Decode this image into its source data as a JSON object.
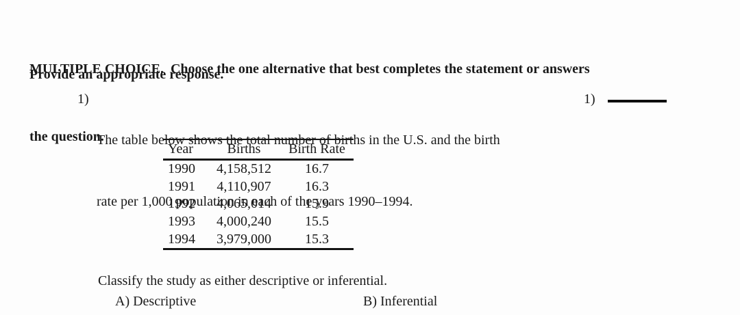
{
  "document": {
    "heading": {
      "line1": "MULTIPLE CHOICE.  Choose the one alternative that best completes the statement or answers",
      "line2": "the question."
    },
    "instruction": "Provide an appropriate response."
  },
  "question": {
    "number": "1)",
    "text_line1": "The table below shows the total number of births in the U.S. and the birth",
    "text_line2": "rate per 1,000 population in each of the years 1990–1994.",
    "answer_number": "1)",
    "prompt": "Classify the study as either descriptive or inferential.",
    "options": [
      {
        "label": "A) Descriptive"
      },
      {
        "label": "B) Inferential"
      }
    ]
  },
  "table": {
    "headers": [
      "Year",
      "Births",
      "Birth Rate"
    ],
    "rows": [
      {
        "year": "1990",
        "births": "4,158,512",
        "rate": "16.7"
      },
      {
        "year": "1991",
        "births": "4,110,907",
        "rate": "16.3"
      },
      {
        "year": "1992",
        "births": "4,065,014",
        "rate": "15.9"
      },
      {
        "year": "1993",
        "births": "4,000,240",
        "rate": "15.5"
      },
      {
        "year": "1994",
        "births": "3,979,000",
        "rate": "15.3"
      }
    ]
  },
  "colors": {
    "text": "#1a1a1a",
    "rule": "#141414",
    "background": "#fdfdfd"
  }
}
